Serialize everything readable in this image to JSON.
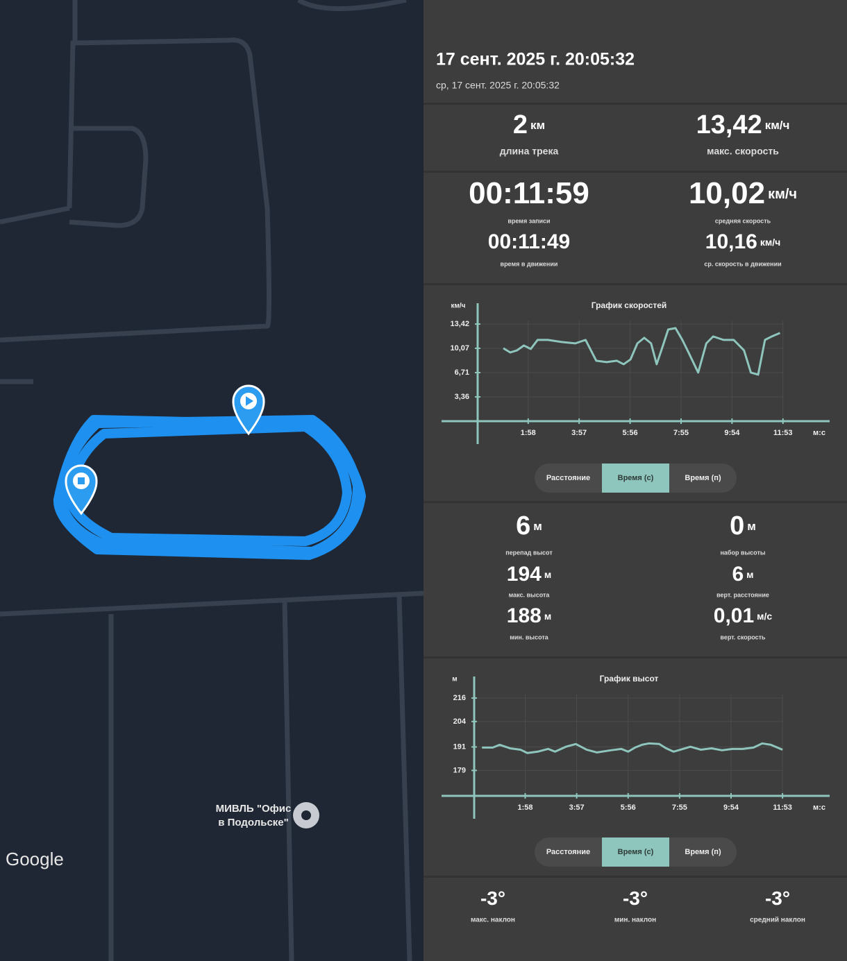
{
  "header": {
    "datetime": "17 сент. 2025 г. 20:05:32",
    "subtitle": "ср, 17 сент. 2025 г. 20:05:32"
  },
  "track_stats": [
    {
      "value": "2",
      "unit": "км",
      "label": "длина трека"
    },
    {
      "value": "13,42",
      "unit": "км/ч",
      "label": "макс. скорость"
    },
    {
      "value": "00:11:59",
      "label": "время записи"
    },
    {
      "value": "10,02",
      "unit": "км/ч",
      "label": "средняя скорость"
    },
    {
      "value": "00:11:49",
      "label": "время в движении"
    },
    {
      "value": "10,16",
      "unit": "км/ч",
      "label": "ср. скорость в движении"
    }
  ],
  "speed_chart": {
    "type": "line",
    "title": "График скоростей",
    "y_unit": "км/ч",
    "x_unit": "м:с",
    "color": "#8ec5bc",
    "x": [
      60,
      76,
      92,
      108,
      124,
      140,
      164,
      196,
      228,
      252,
      277,
      301,
      325,
      341,
      357,
      373,
      389,
      405,
      418,
      429,
      445,
      462,
      478,
      494,
      515,
      534,
      550,
      574,
      598,
      622,
      638,
      655,
      671,
      687,
      706
    ],
    "values": [
      10.08,
      9.5,
      9.79,
      10.46,
      9.98,
      11.23,
      11.23,
      10.94,
      10.75,
      11.23,
      8.35,
      8.16,
      8.35,
      7.87,
      8.54,
      10.75,
      11.52,
      10.75,
      7.87,
      9.79,
      12.67,
      12.86,
      11.23,
      9.31,
      6.72,
      10.75,
      11.71,
      11.23,
      11.23,
      9.79,
      6.72,
      6.43,
      11.23,
      11.71,
      12.19
    ],
    "xlim": [
      0,
      822
    ],
    "ylim": [
      0,
      16.3
    ],
    "xticks": [
      {
        "value": 118,
        "label": "1:58"
      },
      {
        "value": 237,
        "label": "3:57"
      },
      {
        "value": 356,
        "label": "5:56"
      },
      {
        "value": 475,
        "label": "7:55"
      },
      {
        "value": 594,
        "label": "9:54"
      },
      {
        "value": 713,
        "label": "11:53"
      }
    ],
    "yticks": [
      {
        "value": 13.42,
        "label": "13,42"
      },
      {
        "value": 10.07,
        "label": "10,07"
      },
      {
        "value": 6.71,
        "label": "6,71"
      },
      {
        "value": 3.36,
        "label": "3,36"
      }
    ],
    "grid": true,
    "toggle": [
      "Расстояние",
      "Время (с)",
      "Время (п)"
    ],
    "active_toggle": 1
  },
  "altitude_stats": [
    {
      "value": "6",
      "unit": "м",
      "label": "перепад высот"
    },
    {
      "value": "0",
      "unit": "м",
      "label": "набор высоты"
    },
    {
      "value": "194",
      "unit": "м",
      "label": "макс. высота"
    },
    {
      "value": "6",
      "unit": "м",
      "label": "верт. расстояние"
    },
    {
      "value": "188",
      "unit": "м",
      "label": "мин. высота"
    },
    {
      "value": "0,01",
      "unit": "м/с",
      "label": "верт. скорость"
    }
  ],
  "altitude_chart": {
    "type": "line",
    "title": "График высот",
    "y_unit": "м",
    "x_unit": "м:с",
    "color": "#8ec5bc",
    "x": [
      18,
      43,
      59,
      83,
      107,
      123,
      147,
      171,
      187,
      212,
      235,
      260,
      284,
      316,
      340,
      356,
      372,
      388,
      404,
      428,
      444,
      461,
      477,
      500,
      524,
      549,
      573,
      597,
      621,
      646,
      666,
      686,
      713
    ],
    "values": [
      190.7,
      190.7,
      192.1,
      190.3,
      189.6,
      187.9,
      188.6,
      190.0,
      188.6,
      191.1,
      192.5,
      189.6,
      188.2,
      189.3,
      190.0,
      188.6,
      190.7,
      192.1,
      192.8,
      192.5,
      190.3,
      188.6,
      189.6,
      191.1,
      189.6,
      190.3,
      189.3,
      190.0,
      190.0,
      190.7,
      192.8,
      192.1,
      189.6
    ],
    "xlim": [
      0,
      822
    ],
    "ylim": [
      166,
      227
    ],
    "xticks": [
      {
        "value": 118,
        "label": "1:58"
      },
      {
        "value": 237,
        "label": "3:57"
      },
      {
        "value": 356,
        "label": "5:56"
      },
      {
        "value": 475,
        "label": "7:55"
      },
      {
        "value": 594,
        "label": "9:54"
      },
      {
        "value": 713,
        "label": "11:53"
      }
    ],
    "yticks": [
      216,
      204,
      191,
      179
    ],
    "grid": true,
    "toggle": [
      "Расстояние",
      "Время (с)",
      "Время (п)"
    ],
    "active_toggle": 1
  },
  "slope_stats": [
    {
      "value": "-3°",
      "label": "макс. наклон"
    },
    {
      "value": "-3°",
      "label": "мин. наклон"
    },
    {
      "value": "-3°",
      "label": "средний наклон"
    }
  ],
  "map": {
    "attribution": "Google",
    "poi_label": [
      "МИВЛЬ \"Офис",
      "в Подольске\""
    ]
  }
}
